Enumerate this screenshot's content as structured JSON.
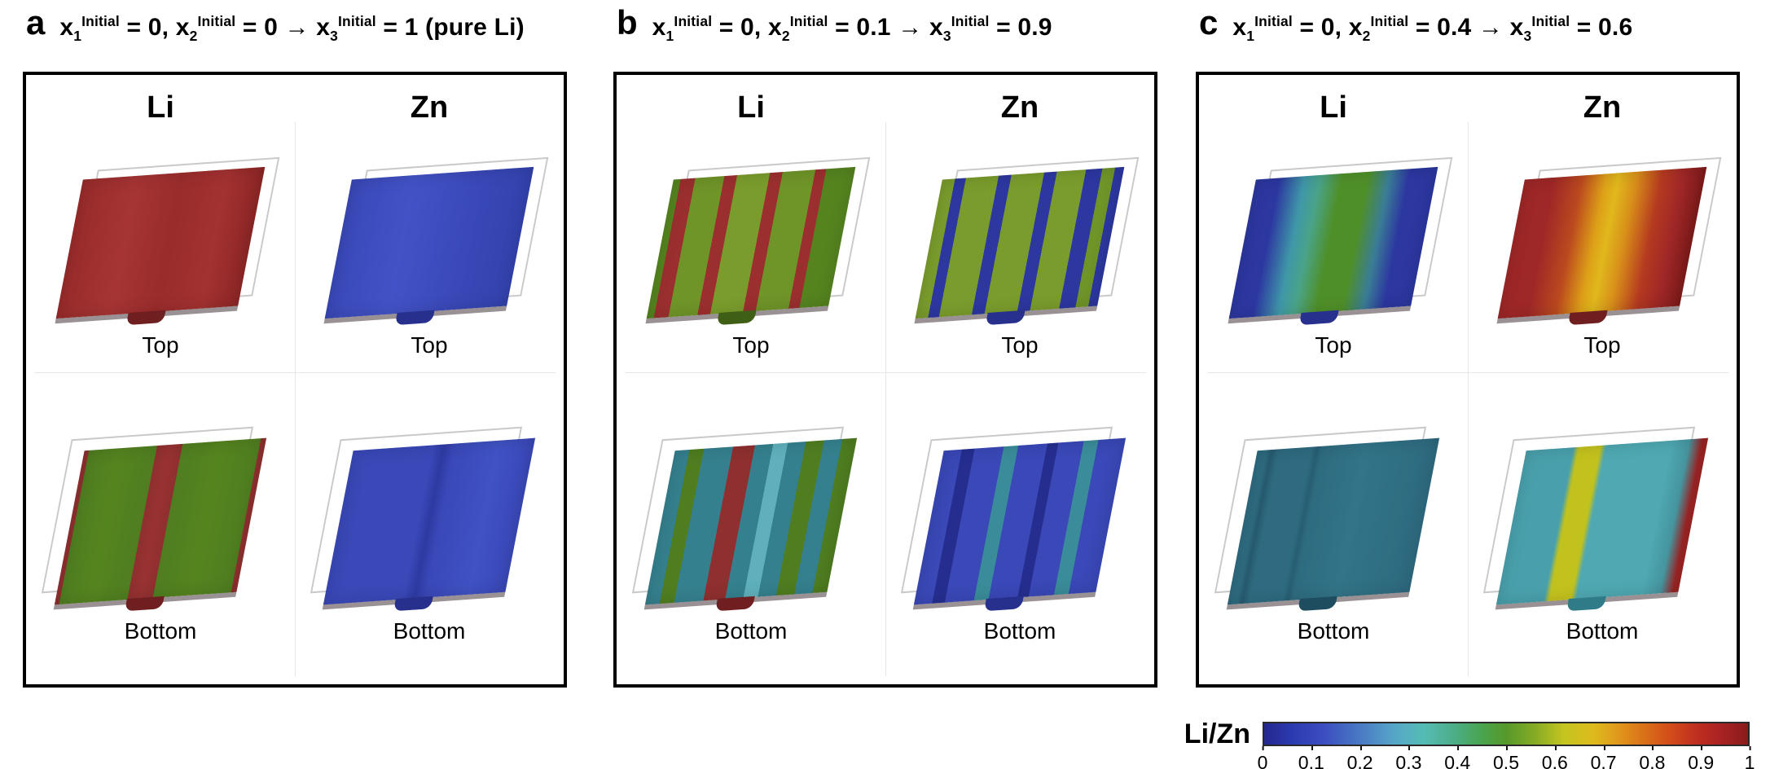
{
  "panels": [
    {
      "label": "a",
      "title_segments": [
        {
          "t": "x"
        },
        {
          "sub": "1"
        },
        {
          "sup": "Initial"
        },
        {
          "t": " = 0, x"
        },
        {
          "sub": "2"
        },
        {
          "sup": "Initial"
        },
        {
          "t": " = 0 → x"
        },
        {
          "sub": "3"
        },
        {
          "sup": "Initial"
        },
        {
          "t": " = 1 (pure Li)"
        }
      ],
      "columns": [
        "Li",
        "Zn"
      ],
      "views": [
        {
          "element": "Li",
          "label": "Top",
          "tab": "#6f1f1f",
          "gradient": [
            {
              "c": "#992b2b",
              "p": 0
            },
            {
              "c": "#a63434",
              "p": 30
            },
            {
              "c": "#9a2c2c",
              "p": 55
            },
            {
              "c": "#a33131",
              "p": 80
            },
            {
              "c": "#8e2626",
              "p": 100
            }
          ]
        },
        {
          "element": "Zn",
          "label": "Top",
          "tab": "#27308c",
          "gradient": [
            {
              "c": "#3a48b8",
              "p": 0
            },
            {
              "c": "#4353c6",
              "p": 35
            },
            {
              "c": "#3a48b8",
              "p": 70
            },
            {
              "c": "#3342ae",
              "p": 100
            }
          ]
        },
        {
          "element": "Li",
          "label": "Bottom",
          "tab": "#6f1f1f",
          "gradient": [
            {
              "c": "#8f2f2f",
              "p": 0
            },
            {
              "c": "#8f2f2f",
              "p": 2.5
            },
            {
              "c": "#4f7d20",
              "p": 2.5
            },
            {
              "c": "#55841f",
              "p": 20
            },
            {
              "c": "#4f7d20",
              "p": 40
            },
            {
              "c": "#8f2f2f",
              "p": 40
            },
            {
              "c": "#983232",
              "p": 47
            },
            {
              "c": "#8f2f2f",
              "p": 54
            },
            {
              "c": "#4f7d20",
              "p": 54
            },
            {
              "c": "#55841f",
              "p": 75
            },
            {
              "c": "#4f7d20",
              "p": 97
            },
            {
              "c": "#8f2f2f",
              "p": 97
            },
            {
              "c": "#8f2f2f",
              "p": 100
            }
          ]
        },
        {
          "element": "Zn",
          "label": "Bottom",
          "tab": "#27308c",
          "gradient": [
            {
              "c": "#3a48b8",
              "p": 0
            },
            {
              "c": "#3a48b8",
              "p": 44
            },
            {
              "c": "#2e3aa2",
              "p": 50
            },
            {
              "c": "#3a48b8",
              "p": 56
            },
            {
              "c": "#4052c4",
              "p": 80
            },
            {
              "c": "#3a48b8",
              "p": 100
            }
          ]
        }
      ]
    },
    {
      "label": "b",
      "title_segments": [
        {
          "t": "x"
        },
        {
          "sub": "1"
        },
        {
          "sup": "Initial"
        },
        {
          "t": " = 0, x"
        },
        {
          "sub": "2"
        },
        {
          "sup": "Initial"
        },
        {
          "t": " = 0.1 → x"
        },
        {
          "sub": "3"
        },
        {
          "sup": "Initial"
        },
        {
          "t": " = 0.9"
        }
      ],
      "columns": [
        "Li",
        "Zn"
      ],
      "views": [
        {
          "element": "Li",
          "label": "Top",
          "tab": "#3f5f14",
          "gradient": [
            {
              "c": "#55841f",
              "p": 0
            },
            {
              "c": "#55841f",
              "p": 4
            },
            {
              "c": "#9b2f2f",
              "p": 4
            },
            {
              "c": "#9b2f2f",
              "p": 12
            },
            {
              "c": "#6f9428",
              "p": 12
            },
            {
              "c": "#6f9428",
              "p": 28
            },
            {
              "c": "#9b2f2f",
              "p": 28
            },
            {
              "c": "#9b2f2f",
              "p": 35
            },
            {
              "c": "#7a9c2c",
              "p": 35
            },
            {
              "c": "#7a9c2c",
              "p": 53
            },
            {
              "c": "#9b2f2f",
              "p": 53
            },
            {
              "c": "#9b2f2f",
              "p": 60
            },
            {
              "c": "#6f9428",
              "p": 60
            },
            {
              "c": "#6f9428",
              "p": 78
            },
            {
              "c": "#9b2f2f",
              "p": 78
            },
            {
              "c": "#9b2f2f",
              "p": 84
            },
            {
              "c": "#55841f",
              "p": 84
            },
            {
              "c": "#55841f",
              "p": 100
            }
          ]
        },
        {
          "element": "Zn",
          "label": "Top",
          "tab": "#27308c",
          "gradient": [
            {
              "c": "#7a9c2c",
              "p": 0
            },
            {
              "c": "#7a9c2c",
              "p": 7
            },
            {
              "c": "#2c37a0",
              "p": 7
            },
            {
              "c": "#2c37a0",
              "p": 13
            },
            {
              "c": "#7a9c2c",
              "p": 13
            },
            {
              "c": "#7a9c2c",
              "p": 31
            },
            {
              "c": "#2c37a0",
              "p": 31
            },
            {
              "c": "#2c37a0",
              "p": 38
            },
            {
              "c": "#7a9c2c",
              "p": 38
            },
            {
              "c": "#7a9c2c",
              "p": 56
            },
            {
              "c": "#2c37a0",
              "p": 56
            },
            {
              "c": "#2c37a0",
              "p": 63
            },
            {
              "c": "#7a9c2c",
              "p": 63
            },
            {
              "c": "#7a9c2c",
              "p": 79
            },
            {
              "c": "#2c37a0",
              "p": 79
            },
            {
              "c": "#2c37a0",
              "p": 88
            },
            {
              "c": "#6f9428",
              "p": 88
            },
            {
              "c": "#6f9428",
              "p": 95
            },
            {
              "c": "#2c37a0",
              "p": 95
            },
            {
              "c": "#2c37a0",
              "p": 100
            }
          ]
        },
        {
          "element": "Li",
          "label": "Bottom",
          "tab": "#6f1f1f",
          "gradient": [
            {
              "c": "#35808e",
              "p": 0
            },
            {
              "c": "#35808e",
              "p": 8
            },
            {
              "c": "#4f7d20",
              "p": 8
            },
            {
              "c": "#4f7d20",
              "p": 16
            },
            {
              "c": "#35808e",
              "p": 16
            },
            {
              "c": "#35808e",
              "p": 32
            },
            {
              "c": "#8f2f2f",
              "p": 32
            },
            {
              "c": "#8f2f2f",
              "p": 44
            },
            {
              "c": "#35808e",
              "p": 44
            },
            {
              "c": "#35808e",
              "p": 54
            },
            {
              "c": "#5fb0bc",
              "p": 54
            },
            {
              "c": "#5fb0bc",
              "p": 62
            },
            {
              "c": "#35808e",
              "p": 62
            },
            {
              "c": "#35808e",
              "p": 72
            },
            {
              "c": "#4f7d20",
              "p": 72
            },
            {
              "c": "#4f7d20",
              "p": 82
            },
            {
              "c": "#35808e",
              "p": 82
            },
            {
              "c": "#35808e",
              "p": 92
            },
            {
              "c": "#4f7d20",
              "p": 92
            },
            {
              "c": "#4f7d20",
              "p": 100
            }
          ]
        },
        {
          "element": "Zn",
          "label": "Bottom",
          "tab": "#27308c",
          "gradient": [
            {
              "c": "#3a48b8",
              "p": 0
            },
            {
              "c": "#3a48b8",
              "p": 10
            },
            {
              "c": "#252e8f",
              "p": 10
            },
            {
              "c": "#252e8f",
              "p": 17
            },
            {
              "c": "#3a48b8",
              "p": 17
            },
            {
              "c": "#3a48b8",
              "p": 33
            },
            {
              "c": "#3a8c9a",
              "p": 33
            },
            {
              "c": "#3a8c9a",
              "p": 41
            },
            {
              "c": "#3a48b8",
              "p": 41
            },
            {
              "c": "#3a48b8",
              "p": 57
            },
            {
              "c": "#252e8f",
              "p": 57
            },
            {
              "c": "#252e8f",
              "p": 63
            },
            {
              "c": "#3a48b8",
              "p": 63
            },
            {
              "c": "#3a48b8",
              "p": 77
            },
            {
              "c": "#3a8c9a",
              "p": 77
            },
            {
              "c": "#3a8c9a",
              "p": 85
            },
            {
              "c": "#3a48b8",
              "p": 85
            },
            {
              "c": "#3a48b8",
              "p": 100
            }
          ]
        }
      ]
    },
    {
      "label": "c",
      "title_segments": [
        {
          "t": "x"
        },
        {
          "sub": "1"
        },
        {
          "sup": "Initial"
        },
        {
          "t": " = 0, x"
        },
        {
          "sub": "2"
        },
        {
          "sup": "Initial"
        },
        {
          "t": " = 0.4 → x"
        },
        {
          "sub": "3"
        },
        {
          "sup": "Initial"
        },
        {
          "t": " = 0.6"
        }
      ],
      "columns": [
        "Li",
        "Zn"
      ],
      "views": [
        {
          "element": "Li",
          "label": "Top",
          "tab": "#27308c",
          "gradient": [
            {
              "c": "#2c37a0",
              "p": 0
            },
            {
              "c": "#2c37a0",
              "p": 13
            },
            {
              "c": "#3f97a8",
              "p": 27
            },
            {
              "c": "#4aa387",
              "p": 36
            },
            {
              "c": "#4f8f28",
              "p": 48
            },
            {
              "c": "#4f8f28",
              "p": 62
            },
            {
              "c": "#3a7d96",
              "p": 74
            },
            {
              "c": "#2c37a0",
              "p": 85
            },
            {
              "c": "#2c37a0",
              "p": 100
            }
          ]
        },
        {
          "element": "Zn",
          "label": "Top",
          "tab": "#6f1f1f",
          "gradient": [
            {
              "c": "#9e2727",
              "p": 0
            },
            {
              "c": "#9e2727",
              "p": 16
            },
            {
              "c": "#bb4a1e",
              "p": 32
            },
            {
              "c": "#dda018",
              "p": 45
            },
            {
              "c": "#e0b81c",
              "p": 52
            },
            {
              "c": "#d88f1a",
              "p": 62
            },
            {
              "c": "#b53a20",
              "p": 76
            },
            {
              "c": "#9e2727",
              "p": 88
            },
            {
              "c": "#7e1a1a",
              "p": 100
            }
          ]
        },
        {
          "element": "Li",
          "label": "Bottom",
          "tab": "#1e4d60",
          "gradient": [
            {
              "c": "#2e6b80",
              "p": 0
            },
            {
              "c": "#2e6b80",
              "p": 5
            },
            {
              "c": "#26596e",
              "p": 8
            },
            {
              "c": "#2e6b80",
              "p": 12
            },
            {
              "c": "#2e6b80",
              "p": 30
            },
            {
              "c": "#275d72",
              "p": 33
            },
            {
              "c": "#2e6b80",
              "p": 36
            },
            {
              "c": "#337488",
              "p": 60
            },
            {
              "c": "#2e6b80",
              "p": 95
            },
            {
              "c": "#2e6b80",
              "p": 100
            }
          ]
        },
        {
          "element": "Zn",
          "label": "Bottom",
          "tab": "#2f7c88",
          "gradient": [
            {
              "c": "#49a0ac",
              "p": 0
            },
            {
              "c": "#49a0ac",
              "p": 26
            },
            {
              "c": "#c2c21e",
              "p": 29
            },
            {
              "c": "#c2c21e",
              "p": 41
            },
            {
              "c": "#4fa8b2",
              "p": 44
            },
            {
              "c": "#4fa8b2",
              "p": 80
            },
            {
              "c": "#45949e",
              "p": 90
            },
            {
              "c": "#9b2424",
              "p": 97
            },
            {
              "c": "#9b2424",
              "p": 100
            }
          ]
        }
      ]
    }
  ],
  "colorbar": {
    "label": "Li/Zn",
    "ticks": [
      "0",
      "0.1",
      "0.2",
      "0.3",
      "0.4",
      "0.5",
      "0.6",
      "0.7",
      "0.8",
      "0.9",
      "1"
    ],
    "gradient": [
      {
        "c": "#23278f",
        "p": 0
      },
      {
        "c": "#2d3bb0",
        "p": 6
      },
      {
        "c": "#3b4cc0",
        "p": 12
      },
      {
        "c": "#4a7bc4",
        "p": 20
      },
      {
        "c": "#56a7c8",
        "p": 27
      },
      {
        "c": "#55bcb4",
        "p": 33
      },
      {
        "c": "#4cae8a",
        "p": 39
      },
      {
        "c": "#49a44e",
        "p": 45
      },
      {
        "c": "#56992a",
        "p": 50
      },
      {
        "c": "#86ab24",
        "p": 56
      },
      {
        "c": "#c5c520",
        "p": 62
      },
      {
        "c": "#ddbb1d",
        "p": 68
      },
      {
        "c": "#e0991c",
        "p": 73
      },
      {
        "c": "#da7418",
        "p": 78
      },
      {
        "c": "#d4521a",
        "p": 83
      },
      {
        "c": "#c2301f",
        "p": 89
      },
      {
        "c": "#ab2323",
        "p": 94
      },
      {
        "c": "#8a1c1c",
        "p": 100
      }
    ]
  }
}
